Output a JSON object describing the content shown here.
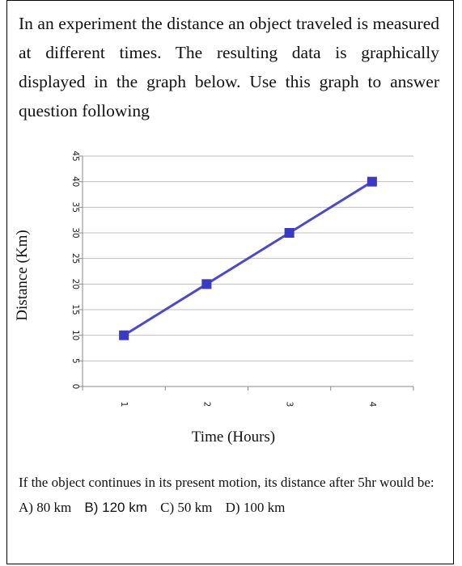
{
  "intro_text": "In an experiment the distance an object traveled is measured at different times. The resulting data is graphically displayed in the graph below. Use this graph to answer question following",
  "question": {
    "text": "If the object continues in its present motion, its distance after 5hr would be:",
    "options": [
      "A) 80 km",
      "B) 120 km",
      "C) 50 km",
      "D) 100 km"
    ]
  },
  "chart_data": {
    "type": "line",
    "title": "",
    "xlabel": "Time (Hours)",
    "ylabel": "Distance (Km)",
    "x": [
      1,
      2,
      3,
      4
    ],
    "series": [
      {
        "values": [
          10,
          20,
          30,
          40
        ]
      }
    ],
    "xticks": [
      "1",
      "2",
      "3",
      "4"
    ],
    "yticks": [
      "0",
      "5",
      "10",
      "15",
      "20",
      "25",
      "30",
      "35",
      "40",
      "45"
    ],
    "xlim": [
      0.5,
      4.5
    ],
    "ylim": [
      0,
      45
    ],
    "grid": "horizontal",
    "legend": "none",
    "line_color": "#4b4bc8",
    "marker_color": "#3a3ac4",
    "grid_color": "#bfbfbf"
  }
}
